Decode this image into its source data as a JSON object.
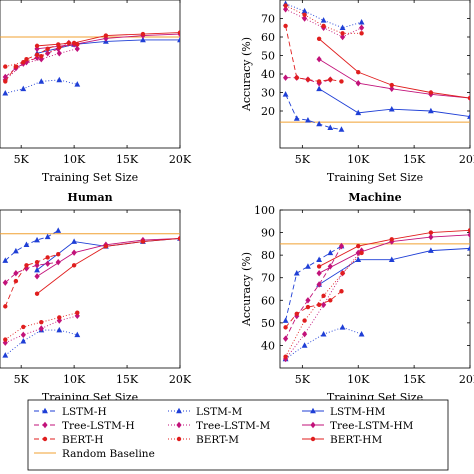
{
  "legend": {
    "entries": [
      {
        "label": "LSTM-H",
        "color": "#1f3fd6",
        "dash": "5,3",
        "marker": "triangle"
      },
      {
        "label": "LSTM-M",
        "color": "#1f3fd6",
        "dash": "1,2",
        "marker": "triangle"
      },
      {
        "label": "LSTM-HM",
        "color": "#1f3fd6",
        "dash": "",
        "marker": "triangle"
      },
      {
        "label": "Tree-LSTM-H",
        "color": "#c2127a",
        "dash": "5,3",
        "marker": "diamond"
      },
      {
        "label": "Tree-LSTM-M",
        "color": "#c2127a",
        "dash": "1,2",
        "marker": "diamond"
      },
      {
        "label": "Tree-LSTM-HM",
        "color": "#c2127a",
        "dash": "",
        "marker": "diamond"
      },
      {
        "label": "BERT-H",
        "color": "#e01e1e",
        "dash": "5,3",
        "marker": "circle"
      },
      {
        "label": "BERT-M",
        "color": "#e01e1e",
        "dash": "1,2",
        "marker": "circle"
      },
      {
        "label": "BERT-HM",
        "color": "#e01e1e",
        "dash": "",
        "marker": "circle"
      },
      {
        "label": "Random Baseline",
        "color": "#f0a030",
        "dash": "",
        "marker": "none"
      }
    ]
  },
  "chart_data": [
    {
      "type": "line",
      "title": "",
      "xlabel": "Training Set Size",
      "ylabel": "",
      "xlim": [
        3000,
        20000
      ],
      "ylim": [
        0,
        100
      ],
      "xticks": [
        5000,
        10000,
        15000,
        20000
      ],
      "xtick_labels": [
        "5K",
        "10K",
        "15K",
        "20K"
      ],
      "yticks": [],
      "grid": false,
      "baseline": 75,
      "series": [
        {
          "name": "LSTM-H",
          "x": [],
          "y": []
        },
        {
          "name": "LSTM-M",
          "x": [
            3500,
            5200,
            6900,
            8600,
            10300
          ],
          "y": [
            37,
            40,
            45,
            46,
            43
          ]
        },
        {
          "name": "LSTM-HM",
          "x": [
            6500,
            10000,
            13000,
            16500,
            20000
          ],
          "y": [
            64,
            70,
            72,
            73,
            73
          ]
        },
        {
          "name": "Tree-LSTM-H",
          "x": [
            3500,
            4500,
            5500,
            6500,
            7500,
            8500,
            9500
          ],
          "y": [
            48,
            54,
            58,
            61,
            64,
            67,
            71
          ]
        },
        {
          "name": "Tree-LSTM-M",
          "x": [
            3500,
            5200,
            6900,
            8600,
            10300
          ],
          "y": [
            46,
            57,
            60,
            64,
            67
          ]
        },
        {
          "name": "Tree-LSTM-HM",
          "x": [
            6500,
            10000,
            13000,
            16500,
            20000
          ],
          "y": [
            67,
            70,
            74,
            76,
            77
          ]
        },
        {
          "name": "BERT-H",
          "x": [
            3500,
            4500,
            5500,
            6500,
            7500,
            8500,
            9500
          ],
          "y": [
            45,
            55,
            60,
            63,
            67,
            70,
            71
          ]
        },
        {
          "name": "BERT-M",
          "x": [
            3500,
            5200,
            6900,
            8600,
            10300
          ],
          "y": [
            55,
            58,
            62,
            68,
            70
          ]
        },
        {
          "name": "BERT-HM",
          "x": [
            6500,
            10000,
            13000,
            16500,
            20000
          ],
          "y": [
            69,
            71,
            76,
            77,
            78
          ]
        }
      ]
    },
    {
      "type": "line",
      "title": "",
      "xlabel": "Training Set Size",
      "ylabel": "Accuracy (%)",
      "xlim": [
        3000,
        20000
      ],
      "ylim": [
        0,
        80
      ],
      "xticks": [
        5000,
        10000,
        15000,
        20000
      ],
      "xtick_labels": [
        "5K",
        "10K",
        "15K",
        "20K"
      ],
      "yticks": [
        20,
        30,
        40,
        50,
        60,
        70
      ],
      "grid": false,
      "baseline": 14,
      "series": [
        {
          "name": "LSTM-H",
          "x": [
            3500,
            4500,
            5500,
            6500,
            7500,
            8500
          ],
          "y": [
            29,
            16,
            15,
            13,
            11,
            10
          ]
        },
        {
          "name": "LSTM-M",
          "x": [
            3500,
            5200,
            6900,
            8600,
            10300
          ],
          "y": [
            78,
            74,
            69,
            65,
            68
          ]
        },
        {
          "name": "LSTM-HM",
          "x": [
            6500,
            10000,
            13000,
            16500,
            20000
          ],
          "y": [
            32,
            19,
            21,
            20,
            17
          ]
        },
        {
          "name": "Tree-LSTM-H",
          "x": [
            3500,
            4500,
            5500,
            6500,
            7500
          ],
          "y": [
            38,
            38,
            37,
            35,
            37
          ]
        },
        {
          "name": "Tree-LSTM-M",
          "x": [
            3500,
            5200,
            6900,
            8600,
            10300
          ],
          "y": [
            75,
            70,
            65,
            60,
            65
          ]
        },
        {
          "name": "Tree-LSTM-HM",
          "x": [
            6500,
            10000,
            13000,
            16500,
            20000
          ],
          "y": [
            48,
            35,
            32,
            29,
            27
          ]
        },
        {
          "name": "BERT-H",
          "x": [
            3500,
            4500,
            5500,
            6500,
            7500,
            8500
          ],
          "y": [
            66,
            38,
            37,
            36,
            37,
            36
          ]
        },
        {
          "name": "BERT-M",
          "x": [
            3500,
            5200,
            6900,
            8600,
            10300
          ],
          "y": [
            77,
            72,
            66,
            62,
            62
          ]
        },
        {
          "name": "BERT-HM",
          "x": [
            6500,
            10000,
            13000,
            16500,
            20000
          ],
          "y": [
            59,
            41,
            34,
            30,
            27
          ]
        }
      ]
    },
    {
      "type": "line",
      "title": "Human",
      "xlabel": "Training Set Size",
      "ylabel": "",
      "xlim": [
        3000,
        20000
      ],
      "ylim": [
        0,
        100
      ],
      "xticks": [
        5000,
        10000,
        15000,
        20000
      ],
      "xtick_labels": [
        "5K",
        "10K",
        "15K",
        "20K"
      ],
      "yticks": [],
      "grid": false,
      "baseline": 85,
      "series": [
        {
          "name": "LSTM-H",
          "x": [
            3500,
            4500,
            5500,
            6500,
            7500,
            8500
          ],
          "y": [
            68,
            74,
            78,
            81,
            83,
            87
          ]
        },
        {
          "name": "LSTM-M",
          "x": [
            3500,
            5200,
            6900,
            8600,
            10300
          ],
          "y": [
            8,
            17,
            24,
            24,
            21
          ]
        },
        {
          "name": "LSTM-HM",
          "x": [
            6500,
            10000,
            13000,
            16500,
            20000
          ],
          "y": [
            62,
            80,
            77,
            80,
            82
          ]
        },
        {
          "name": "Tree-LSTM-H",
          "x": [
            3500,
            4500,
            5500,
            6500,
            7500,
            8500
          ],
          "y": [
            54,
            60,
            63,
            65,
            66,
            67
          ]
        },
        {
          "name": "Tree-LSTM-M",
          "x": [
            3500,
            5200,
            6900,
            8600,
            10300
          ],
          "y": [
            16,
            21,
            25,
            30,
            33
          ]
        },
        {
          "name": "Tree-LSTM-HM",
          "x": [
            6500,
            10000,
            13000,
            16500,
            20000
          ],
          "y": [
            58,
            73,
            78,
            81,
            82
          ]
        },
        {
          "name": "BERT-H",
          "x": [
            3500,
            4500,
            5500,
            6500,
            7500,
            8500
          ],
          "y": [
            39,
            55,
            65,
            67,
            70,
            72
          ]
        },
        {
          "name": "BERT-M",
          "x": [
            3500,
            5200,
            6900,
            8600,
            10300
          ],
          "y": [
            18,
            26,
            29,
            32,
            35
          ]
        },
        {
          "name": "BERT-HM",
          "x": [
            6500,
            10000,
            13000,
            16500,
            20000
          ],
          "y": [
            47,
            65,
            77,
            80,
            82
          ]
        }
      ]
    },
    {
      "type": "line",
      "title": "Machine",
      "xlabel": "Training Set Size",
      "ylabel": "Accuracy (%)",
      "xlim": [
        3000,
        20000
      ],
      "ylim": [
        30,
        100
      ],
      "xticks": [
        5000,
        10000,
        15000,
        20000
      ],
      "xtick_labels": [
        "5K",
        "10K",
        "15K",
        "20K"
      ],
      "yticks": [
        40,
        50,
        60,
        70,
        80,
        90,
        100
      ],
      "grid": false,
      "baseline": 85,
      "series": [
        {
          "name": "LSTM-H",
          "x": [
            3500,
            4500,
            5500,
            6500,
            7500,
            8500
          ],
          "y": [
            51,
            72,
            75,
            78,
            81,
            84
          ]
        },
        {
          "name": "LSTM-M",
          "x": [
            3500,
            5200,
            6900,
            8600,
            10300
          ],
          "y": [
            34,
            40,
            45,
            48,
            45
          ]
        },
        {
          "name": "LSTM-HM",
          "x": [
            6500,
            10000,
            13000,
            16500,
            20000
          ],
          "y": [
            67,
            78,
            78,
            82,
            83
          ]
        },
        {
          "name": "Tree-LSTM-H",
          "x": [
            3500,
            4500,
            5500,
            6500,
            7500,
            8500
          ],
          "y": [
            43,
            53,
            60,
            67,
            75,
            84
          ]
        },
        {
          "name": "Tree-LSTM-M",
          "x": [
            3500,
            5200,
            6900,
            8600,
            10300
          ],
          "y": [
            34,
            45,
            58,
            72,
            82
          ]
        },
        {
          "name": "Tree-LSTM-HM",
          "x": [
            6500,
            10000,
            13000,
            16500,
            20000
          ],
          "y": [
            72,
            81,
            86,
            88,
            89
          ]
        },
        {
          "name": "BERT-H",
          "x": [
            3500,
            4500,
            5500,
            6500,
            7500,
            8500
          ],
          "y": [
            48,
            54,
            57,
            58,
            60,
            64
          ]
        },
        {
          "name": "BERT-M",
          "x": [
            3500,
            5200,
            6900,
            8600,
            10300
          ],
          "y": [
            35,
            51,
            62,
            72,
            81
          ]
        },
        {
          "name": "BERT-HM",
          "x": [
            6500,
            10000,
            13000,
            16500,
            20000
          ],
          "y": [
            75,
            84,
            87,
            90,
            91
          ]
        }
      ]
    }
  ]
}
